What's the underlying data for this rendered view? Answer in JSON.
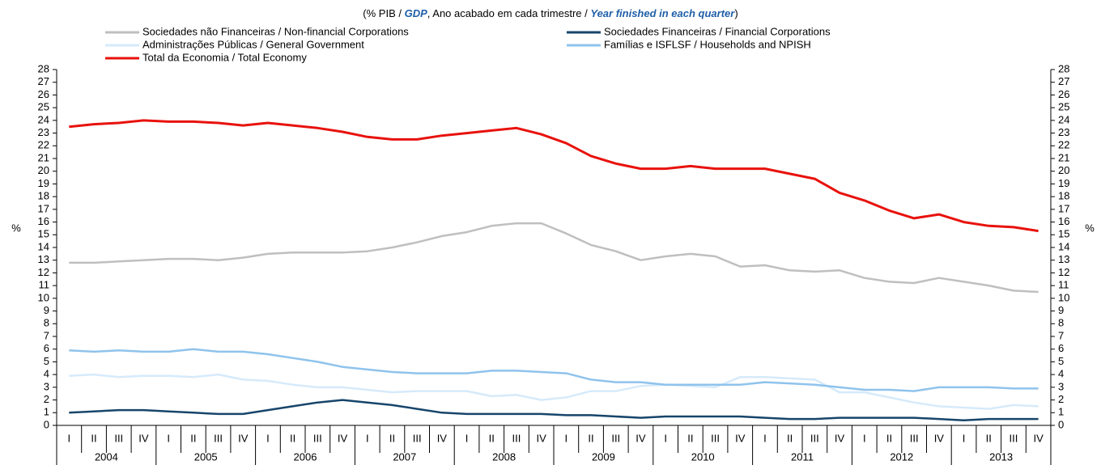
{
  "chart_data": {
    "type": "line",
    "subtitle": [
      "(% PIB / ",
      "GDP",
      ", Ano acabado em cada trimestre / ",
      "Year finished in each quarter",
      ")"
    ],
    "ylabel": "%",
    "y2label": "%",
    "categories": [
      "I",
      "II",
      "III",
      "IV",
      "I",
      "II",
      "III",
      "IV",
      "I",
      "II",
      "III",
      "IV",
      "I",
      "II",
      "III",
      "IV",
      "I",
      "II",
      "III",
      "IV",
      "I",
      "II",
      "III",
      "IV",
      "I",
      "II",
      "III",
      "IV",
      "I",
      "II",
      "III",
      "IV",
      "I",
      "II",
      "III",
      "IV",
      "I",
      "II",
      "III",
      "IV"
    ],
    "year_groups": [
      "2004",
      "2005",
      "2006",
      "2007",
      "2008",
      "2009",
      "2010",
      "2011",
      "2012",
      "2013"
    ],
    "ylim": [
      0,
      28
    ],
    "yticks": [
      0,
      1,
      2,
      3,
      4,
      5,
      6,
      7,
      8,
      9,
      10,
      11,
      12,
      13,
      14,
      15,
      16,
      17,
      18,
      19,
      20,
      21,
      22,
      23,
      24,
      25,
      26,
      27,
      28
    ],
    "y2lim": [
      0,
      28
    ],
    "y2ticks": [
      0,
      1,
      2,
      3,
      4,
      5,
      6,
      7,
      8,
      9,
      10,
      11,
      12,
      13,
      14,
      15,
      16,
      17,
      18,
      19,
      20,
      21,
      22,
      23,
      24,
      25,
      26,
      27,
      28
    ],
    "legend": "top",
    "series": [
      {
        "name": "Sociedades não Financeiras / Non-financial Corporations",
        "color": "#bfbfbf",
        "values": [
          12.8,
          12.8,
          12.9,
          13.0,
          13.1,
          13.1,
          13.0,
          13.2,
          13.5,
          13.6,
          13.6,
          13.6,
          13.7,
          14.0,
          14.4,
          14.9,
          15.2,
          15.7,
          15.9,
          15.9,
          15.1,
          14.2,
          13.7,
          13.0,
          13.3,
          13.5,
          13.3,
          12.5,
          12.6,
          12.2,
          12.1,
          12.2,
          11.6,
          11.3,
          11.2,
          11.6,
          11.3,
          11.0,
          10.6,
          10.5
        ]
      },
      {
        "name": "Sociedades Financeiras / Financial Corporations",
        "color": "#17456b",
        "values": [
          1.0,
          1.1,
          1.2,
          1.2,
          1.1,
          1.0,
          0.9,
          0.9,
          1.2,
          1.5,
          1.8,
          2.0,
          1.8,
          1.6,
          1.3,
          1.0,
          0.9,
          0.9,
          0.9,
          0.9,
          0.8,
          0.8,
          0.7,
          0.6,
          0.7,
          0.7,
          0.7,
          0.7,
          0.6,
          0.5,
          0.5,
          0.6,
          0.6,
          0.6,
          0.6,
          0.5,
          0.4,
          0.5,
          0.5,
          0.5
        ]
      },
      {
        "name": "Administrações Públicas / General Government",
        "color": "#d6eafa",
        "values": [
          3.9,
          4.0,
          3.8,
          3.9,
          3.9,
          3.8,
          4.0,
          3.6,
          3.5,
          3.2,
          3.0,
          3.0,
          2.8,
          2.6,
          2.7,
          2.7,
          2.7,
          2.3,
          2.4,
          2.0,
          2.2,
          2.7,
          2.7,
          3.1,
          3.2,
          3.1,
          3.0,
          3.8,
          3.8,
          3.7,
          3.6,
          2.6,
          2.6,
          2.2,
          1.8,
          1.5,
          1.4,
          1.3,
          1.6,
          1.5
        ]
      },
      {
        "name": "Famílias e ISFLSF / Households and NPISH",
        "color": "#8fc3ec",
        "values": [
          5.9,
          5.8,
          5.9,
          5.8,
          5.8,
          6.0,
          5.8,
          5.8,
          5.6,
          5.3,
          5.0,
          4.6,
          4.4,
          4.2,
          4.1,
          4.1,
          4.1,
          4.3,
          4.3,
          4.2,
          4.1,
          3.6,
          3.4,
          3.4,
          3.2,
          3.2,
          3.2,
          3.2,
          3.4,
          3.3,
          3.2,
          3.0,
          2.8,
          2.8,
          2.7,
          3.0,
          3.0,
          3.0,
          2.9,
          2.9
        ]
      },
      {
        "name": "Total da Economia / Total Economy",
        "color": "#e8120c",
        "values": [
          23.5,
          23.7,
          23.8,
          24.0,
          23.9,
          23.9,
          23.8,
          23.6,
          23.8,
          23.6,
          23.4,
          23.1,
          22.7,
          22.5,
          22.5,
          22.8,
          23.0,
          23.2,
          23.4,
          22.9,
          22.2,
          21.2,
          20.6,
          20.2,
          20.2,
          20.4,
          20.2,
          20.2,
          20.2,
          19.8,
          19.4,
          18.3,
          17.7,
          16.9,
          16.3,
          16.6,
          16.0,
          15.7,
          15.6,
          15.3
        ]
      }
    ]
  }
}
